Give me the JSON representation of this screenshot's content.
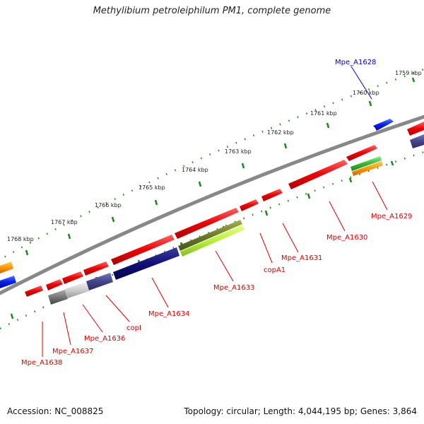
{
  "title": "Methylibium petroleiphilum PM1, complete genome",
  "footer": {
    "accession": "Accession: NC_008825",
    "summary": "Topology: circular; Length: 4,044,195 bp; Genes: 3,864"
  },
  "colors": {
    "backbone": "#888888",
    "ticks": "#1a8a1a",
    "label_red": "#e00000",
    "label_blue": "#0000cc"
  },
  "kbp_labels": [
    "1759 kbp",
    "1760 kbp",
    "1761 kbp",
    "1762 kbp",
    "1763 kbp",
    "1764 kbp",
    "1765 kbp",
    "1766 kbp",
    "1767 kbp",
    "1768 kbp"
  ],
  "gene_labels": [
    {
      "text": "Mpe_A1628",
      "color": "blue"
    },
    {
      "text": "Mpe_A1629",
      "color": "red"
    },
    {
      "text": "Mpe_A1630",
      "color": "red"
    },
    {
      "text": "Mpe_A1631",
      "color": "red"
    },
    {
      "text": "copA1",
      "color": "red"
    },
    {
      "text": "Mpe_A1633",
      "color": "red"
    },
    {
      "text": "Mpe_A1634",
      "color": "red"
    },
    {
      "text": "copI",
      "color": "red"
    },
    {
      "text": "Mpe_A1636",
      "color": "red"
    },
    {
      "text": "Mpe_A1637",
      "color": "red"
    },
    {
      "text": "Mpe_A1638",
      "color": "red"
    }
  ]
}
